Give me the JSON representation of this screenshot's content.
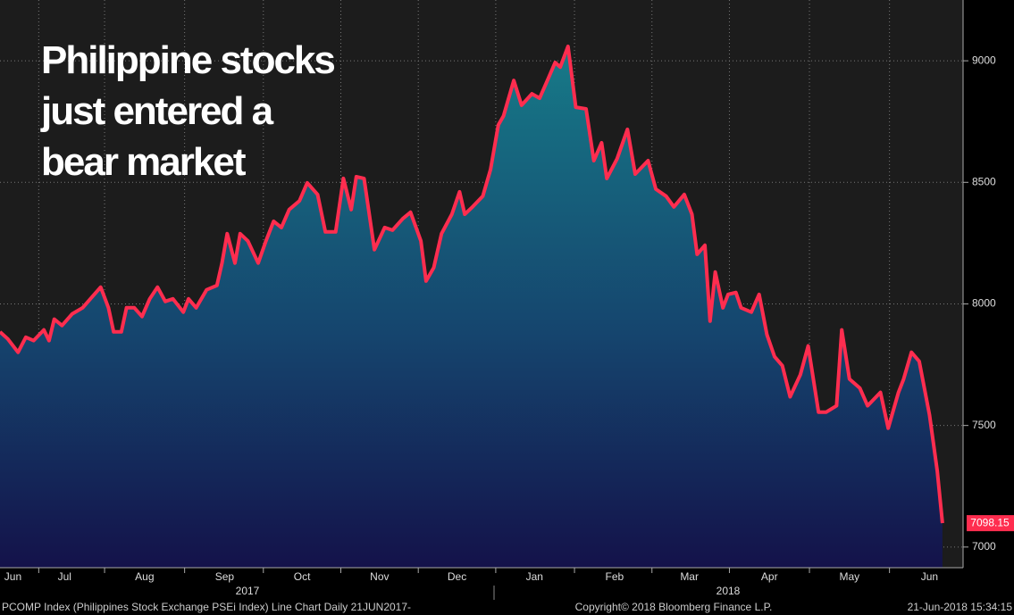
{
  "chart_data": {
    "type": "area",
    "title_lines": [
      "Philippine stocks",
      "just entered a",
      "bear market"
    ],
    "color": "#ff2d4f",
    "x": [
      0,
      3,
      7,
      10,
      13,
      17,
      19,
      21,
      24,
      28,
      32,
      35,
      39,
      42,
      44,
      47,
      49,
      52,
      55,
      58,
      61,
      64,
      67,
      71,
      73,
      76,
      80,
      84,
      86,
      88,
      91,
      93,
      96,
      100,
      103,
      106,
      109,
      112,
      116,
      119,
      123,
      126,
      130,
      133,
      136,
      138,
      141,
      145,
      149,
      152,
      156,
      159,
      163,
      165,
      168,
      171,
      175,
      178,
      180,
      183,
      187,
      190,
      193,
      195,
      199,
      202,
      206,
      209,
      212,
      215,
      217,
      220,
      223,
      227,
      230,
      233,
      235,
      239,
      243,
      246,
      251,
      254,
      258,
      261,
      265,
      268,
      270,
      273,
      275,
      277,
      280,
      282,
      285,
      287,
      291,
      294,
      297,
      300,
      303,
      306,
      310,
      313,
      317,
      320,
      324,
      326,
      329,
      333,
      336,
      341,
      344,
      348,
      350,
      353,
      356,
      360,
      363,
      365
    ],
    "values": [
      7885,
      7856,
      7801,
      7863,
      7849,
      7893,
      7849,
      7937,
      7911,
      7959,
      7984,
      8021,
      8069,
      7984,
      7885,
      7885,
      7984,
      7984,
      7948,
      8021,
      8069,
      8010,
      8021,
      7966,
      8021,
      7984,
      8058,
      8076,
      8168,
      8289,
      8168,
      8289,
      8259,
      8168,
      8259,
      8340,
      8314,
      8388,
      8424,
      8498,
      8450,
      8296,
      8296,
      8516,
      8388,
      8523,
      8516,
      8223,
      8314,
      8303,
      8351,
      8377,
      8259,
      8094,
      8149,
      8289,
      8369,
      8461,
      8369,
      8399,
      8443,
      8553,
      8736,
      8773,
      8919,
      8817,
      8864,
      8846,
      8919,
      8993,
      8974,
      9059,
      8809,
      8802,
      8589,
      8663,
      8516,
      8597,
      8718,
      8534,
      8589,
      8472,
      8443,
      8399,
      8450,
      8369,
      8204,
      8241,
      7929,
      8131,
      7984,
      8039,
      8047,
      7984,
      7966,
      8039,
      7874,
      7783,
      7746,
      7618,
      7709,
      7827,
      7555,
      7555,
      7581,
      7893,
      7691,
      7654,
      7581,
      7636,
      7489,
      7636,
      7691,
      7801,
      7764,
      7544,
      7313,
      7098.15
    ],
    "xlim": [
      0,
      373
    ],
    "xticks": [
      {
        "value": 5,
        "label": "Jun"
      },
      {
        "value": 25,
        "label": "Jul"
      },
      {
        "value": 56,
        "label": "Aug"
      },
      {
        "value": 87,
        "label": "Sep"
      },
      {
        "value": 117,
        "label": "Oct"
      },
      {
        "value": 147,
        "label": "Nov"
      },
      {
        "value": 177,
        "label": "Dec"
      },
      {
        "value": 207,
        "label": "Jan"
      },
      {
        "value": 238,
        "label": "Feb"
      },
      {
        "value": 267,
        "label": "Mar"
      },
      {
        "value": 298,
        "label": "Apr"
      },
      {
        "value": 329,
        "label": "May"
      },
      {
        "value": 360,
        "label": "Jun"
      }
    ],
    "years": [
      "2017",
      "2018"
    ],
    "ylim": [
      6915,
      9250
    ],
    "yticks": [
      7000,
      7500,
      8000,
      8500,
      9000
    ],
    "grid": true,
    "footer_left": "PCOMP Index (Philippines Stock Exchange PSEi Index) Line Chart  Daily 21JUN2017-",
    "footer_center": "Copyright© 2018 Bloomberg Finance L.P.",
    "footer_right": "21-Jun-2018 15:34:15"
  }
}
